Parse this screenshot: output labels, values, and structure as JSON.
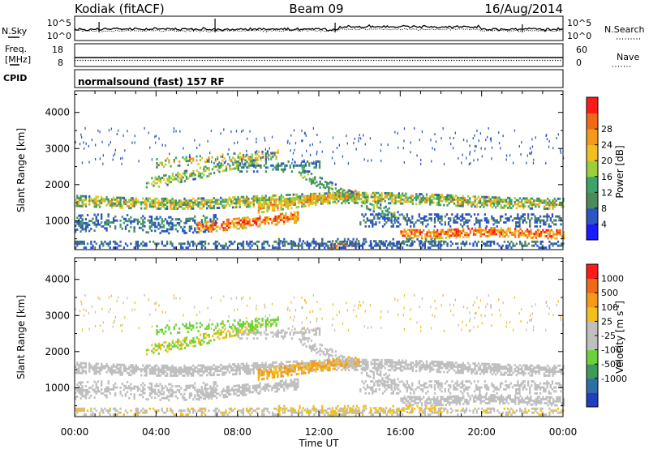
{
  "header": {
    "radar": "Kodiak (fitACF)",
    "beam": "Beam 09",
    "date": "16/Aug/2014"
  },
  "noise_panel": {
    "left_label": "N.Sky",
    "right_label": "N.Search",
    "left_ticks": [
      "10^5",
      "10^0"
    ],
    "right_ticks": [
      "10^5",
      "10^0"
    ]
  },
  "freq_panel": {
    "left_label_top": "Freq.",
    "left_label_bottom": "[MHz]",
    "right_label": "Nave",
    "left_ticks": [
      "18",
      "8"
    ],
    "right_ticks": [
      "60",
      "0"
    ]
  },
  "cpid_panel": {
    "label": "CPID",
    "value": "normalsound (fast) 157 RF"
  },
  "chart_data": [
    {
      "type": "heatmap",
      "name": "power",
      "ylabel": "Slant Range [km]",
      "yticks": [
        "1000",
        "2000",
        "3000",
        "4000"
      ],
      "ylim": [
        200,
        4600
      ],
      "colorbar_label": "Power [dB]",
      "colorbar_ticks": [
        "4",
        "8",
        "12",
        "16",
        "20",
        "24",
        "28"
      ],
      "colors": [
        "#1a1aff",
        "#2b55c2",
        "#4d8a5a",
        "#3da36b",
        "#9ccf3a",
        "#f2c01d",
        "#f59a18",
        "#f06a14",
        "#ff1a1a"
      ]
    },
    {
      "type": "heatmap",
      "name": "velocity",
      "ylabel": "Slant Range [km]",
      "yticks": [
        "1000",
        "2000",
        "3000",
        "4000"
      ],
      "ylim": [
        200,
        4600
      ],
      "colorbar_label": "Velocity [m s",
      "colorbar_unit_sup": "-1",
      "colorbar_label_end": "]",
      "colorbar_ticks": [
        "1000",
        "500",
        "100",
        "25",
        "-25",
        "-100",
        "-500",
        "-1000"
      ],
      "colors": [
        "#1f3fbf",
        "#2f6fa8",
        "#3f9a5a",
        "#6dd23a",
        "#bfbfbf",
        "#bfbfbf",
        "#f2c01d",
        "#f59a18",
        "#f06a14",
        "#ff1a1a"
      ]
    }
  ],
  "x_axis": {
    "xlabel": "Time UT",
    "ticks": [
      "00:00",
      "04:00",
      "08:00",
      "12:00",
      "16:00",
      "20:00",
      "00:00"
    ]
  }
}
